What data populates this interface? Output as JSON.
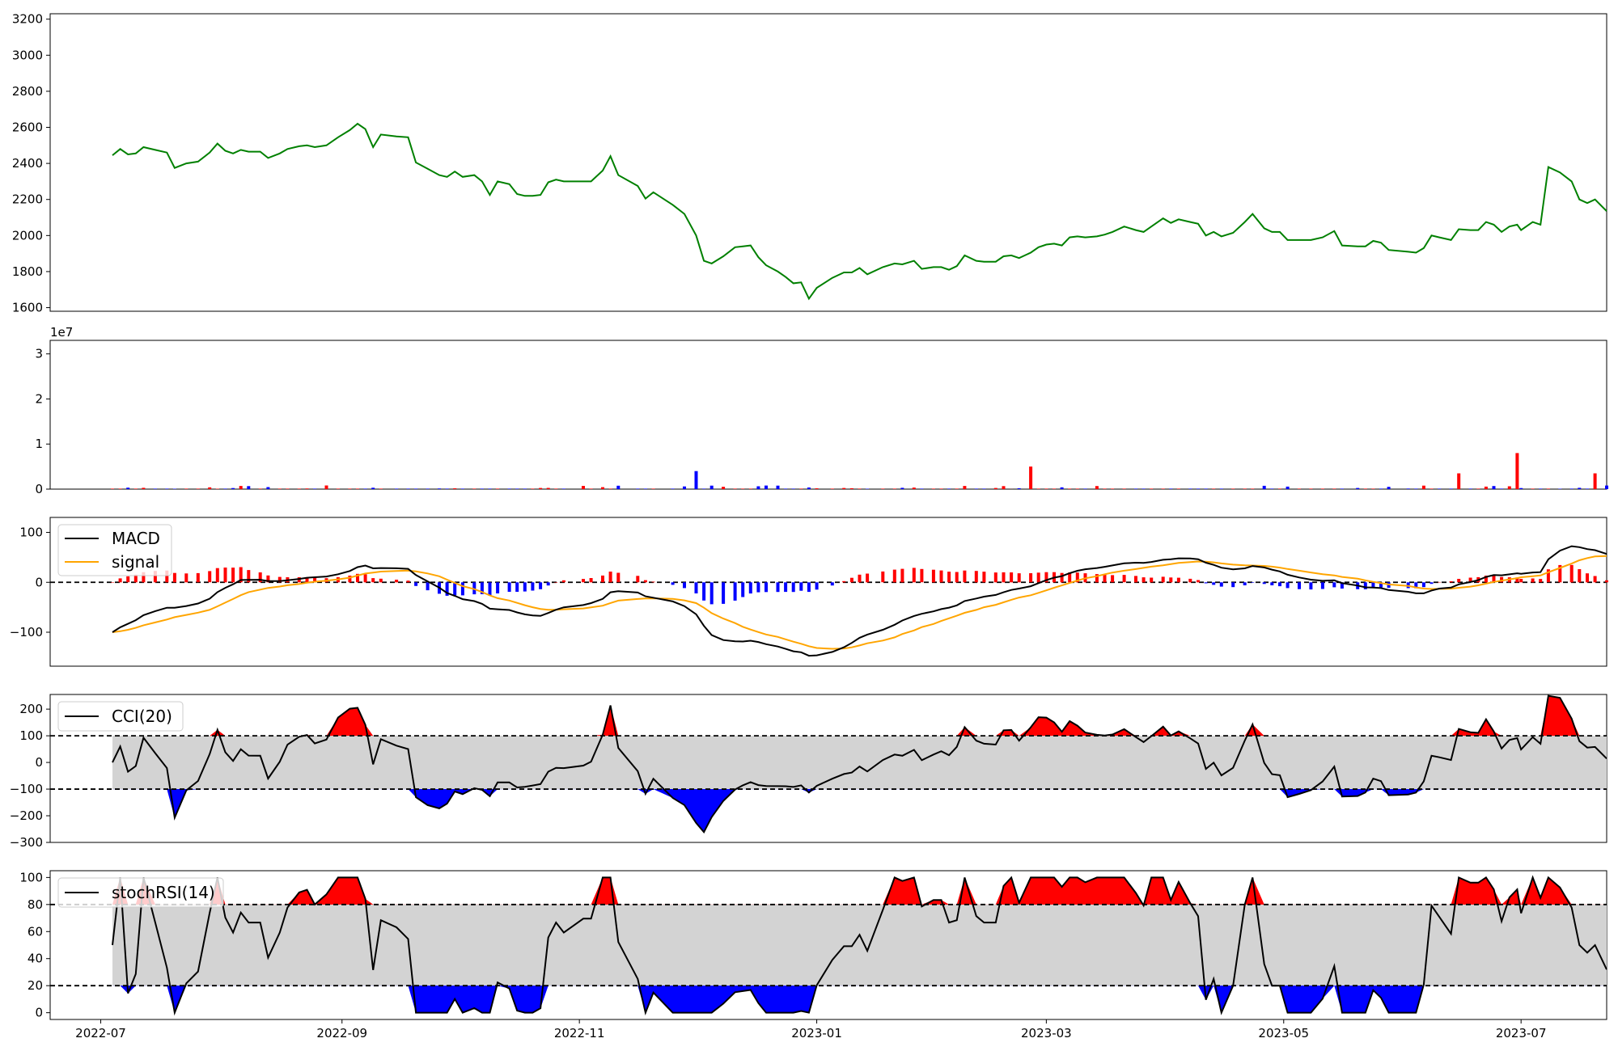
{
  "chart_data": {
    "type": "line",
    "x_axis": {
      "range": [
        "2022-06-18",
        "2023-07-23"
      ],
      "ticks": [
        "2022-07-01",
        "2022-09-01",
        "2022-11-01",
        "2023-01-01",
        "2023-03-01",
        "2023-05-01",
        "2023-07-01"
      ],
      "tick_labels": [
        "2022-07",
        "2022-09",
        "2022-11",
        "2023-01",
        "2023-03",
        "2023-05",
        "2023-07"
      ]
    },
    "colors": {
      "price": "#008000",
      "up": "#ff0000",
      "down": "#0000ff",
      "macd": "#000000",
      "signal": "#ffa500",
      "band": "#d3d3d3"
    },
    "panels": [
      {
        "id": "price",
        "type": "line",
        "ylim": [
          1580,
          3230
        ],
        "yticks": [
          1600,
          1800,
          2000,
          2200,
          2400,
          2600,
          2800,
          3000,
          3200
        ],
        "series": [
          {
            "points": [
              [
                "2022-07-04",
                2445
              ],
              [
                "2022-07-06",
                2480
              ],
              [
                "2022-07-08",
                2450
              ],
              [
                "2022-07-10",
                2455
              ],
              [
                "2022-07-12",
                2490
              ],
              [
                "2022-07-15",
                2475
              ],
              [
                "2022-07-18",
                2460
              ],
              [
                "2022-07-20",
                2375
              ],
              [
                "2022-07-23",
                2400
              ],
              [
                "2022-07-26",
                2410
              ],
              [
                "2022-07-29",
                2460
              ],
              [
                "2022-07-31",
                2510
              ],
              [
                "2022-08-02",
                2470
              ],
              [
                "2022-08-04",
                2455
              ],
              [
                "2022-08-06",
                2475
              ],
              [
                "2022-08-08",
                2465
              ],
              [
                "2022-08-11",
                2465
              ],
              [
                "2022-08-13",
                2430
              ],
              [
                "2022-08-16",
                2455
              ],
              [
                "2022-08-18",
                2480
              ],
              [
                "2022-08-21",
                2495
              ],
              [
                "2022-08-23",
                2500
              ],
              [
                "2022-08-25",
                2490
              ],
              [
                "2022-08-28",
                2500
              ],
              [
                "2022-08-31",
                2545
              ],
              [
                "2022-09-03",
                2585
              ],
              [
                "2022-09-05",
                2620
              ],
              [
                "2022-09-07",
                2590
              ],
              [
                "2022-09-09",
                2490
              ],
              [
                "2022-09-11",
                2560
              ],
              [
                "2022-09-15",
                2550
              ],
              [
                "2022-09-18",
                2545
              ],
              [
                "2022-09-20",
                2405
              ],
              [
                "2022-09-23",
                2370
              ],
              [
                "2022-09-26",
                2335
              ],
              [
                "2022-09-28",
                2325
              ],
              [
                "2022-09-30",
                2355
              ],
              [
                "2022-10-02",
                2325
              ],
              [
                "2022-10-05",
                2335
              ],
              [
                "2022-10-07",
                2300
              ],
              [
                "2022-10-09",
                2225
              ],
              [
                "2022-10-11",
                2300
              ],
              [
                "2022-10-14",
                2285
              ],
              [
                "2022-10-16",
                2230
              ],
              [
                "2022-10-18",
                2220
              ],
              [
                "2022-10-20",
                2220
              ],
              [
                "2022-10-22",
                2225
              ],
              [
                "2022-10-24",
                2295
              ],
              [
                "2022-10-26",
                2310
              ],
              [
                "2022-10-28",
                2300
              ],
              [
                "2022-11-02",
                2300
              ],
              [
                "2022-11-04",
                2300
              ],
              [
                "2022-11-07",
                2360
              ],
              [
                "2022-11-09",
                2440
              ],
              [
                "2022-11-11",
                2335
              ],
              [
                "2022-11-16",
                2275
              ],
              [
                "2022-11-18",
                2205
              ],
              [
                "2022-11-20",
                2240
              ],
              [
                "2022-11-25",
                2170
              ],
              [
                "2022-11-28",
                2120
              ],
              [
                "2022-12-01",
                2000
              ],
              [
                "2022-12-03",
                1860
              ],
              [
                "2022-12-05",
                1845
              ],
              [
                "2022-12-08",
                1885
              ],
              [
                "2022-12-11",
                1935
              ],
              [
                "2022-12-13",
                1940
              ],
              [
                "2022-12-15",
                1945
              ],
              [
                "2022-12-17",
                1880
              ],
              [
                "2022-12-19",
                1835
              ],
              [
                "2022-12-22",
                1800
              ],
              [
                "2022-12-24",
                1770
              ],
              [
                "2022-12-26",
                1735
              ],
              [
                "2022-12-28",
                1740
              ],
              [
                "2022-12-30",
                1650
              ],
              [
                "2023-01-01",
                1710
              ],
              [
                "2023-01-05",
                1765
              ],
              [
                "2023-01-08",
                1795
              ],
              [
                "2023-01-10",
                1795
              ],
              [
                "2023-01-12",
                1820
              ],
              [
                "2023-01-14",
                1785
              ],
              [
                "2023-01-18",
                1825
              ],
              [
                "2023-01-21",
                1845
              ],
              [
                "2023-01-23",
                1840
              ],
              [
                "2023-01-26",
                1860
              ],
              [
                "2023-01-28",
                1815
              ],
              [
                "2023-01-31",
                1825
              ],
              [
                "2023-02-02",
                1825
              ],
              [
                "2023-02-04",
                1810
              ],
              [
                "2023-02-06",
                1830
              ],
              [
                "2023-02-08",
                1890
              ],
              [
                "2023-02-11",
                1860
              ],
              [
                "2023-02-13",
                1855
              ],
              [
                "2023-02-16",
                1855
              ],
              [
                "2023-02-18",
                1885
              ],
              [
                "2023-02-20",
                1890
              ],
              [
                "2023-02-22",
                1875
              ],
              [
                "2023-02-25",
                1905
              ],
              [
                "2023-02-27",
                1935
              ],
              [
                "2023-03-01",
                1950
              ],
              [
                "2023-03-03",
                1955
              ],
              [
                "2023-03-05",
                1945
              ],
              [
                "2023-03-07",
                1990
              ],
              [
                "2023-03-09",
                1995
              ],
              [
                "2023-03-11",
                1990
              ],
              [
                "2023-03-14",
                1995
              ],
              [
                "2023-03-16",
                2005
              ],
              [
                "2023-03-18",
                2020
              ],
              [
                "2023-03-21",
                2050
              ],
              [
                "2023-03-24",
                2030
              ],
              [
                "2023-03-26",
                2020
              ],
              [
                "2023-03-28",
                2050
              ],
              [
                "2023-03-31",
                2095
              ],
              [
                "2023-04-02",
                2070
              ],
              [
                "2023-04-04",
                2090
              ],
              [
                "2023-04-07",
                2075
              ],
              [
                "2023-04-09",
                2065
              ],
              [
                "2023-04-11",
                2000
              ],
              [
                "2023-04-13",
                2020
              ],
              [
                "2023-04-15",
                1995
              ],
              [
                "2023-04-18",
                2015
              ],
              [
                "2023-04-21",
                2075
              ],
              [
                "2023-04-23",
                2120
              ],
              [
                "2023-04-26",
                2040
              ],
              [
                "2023-04-28",
                2020
              ],
              [
                "2023-04-30",
                2020
              ],
              [
                "2023-05-02",
                1975
              ],
              [
                "2023-05-05",
                1975
              ],
              [
                "2023-05-08",
                1975
              ],
              [
                "2023-05-11",
                1990
              ],
              [
                "2023-05-14",
                2025
              ],
              [
                "2023-05-16",
                1945
              ],
              [
                "2023-05-20",
                1940
              ],
              [
                "2023-05-22",
                1940
              ],
              [
                "2023-05-24",
                1970
              ],
              [
                "2023-05-26",
                1960
              ],
              [
                "2023-05-28",
                1920
              ],
              [
                "2023-06-02",
                1910
              ],
              [
                "2023-06-04",
                1905
              ],
              [
                "2023-06-06",
                1930
              ],
              [
                "2023-06-08",
                2000
              ],
              [
                "2023-06-10",
                1990
              ],
              [
                "2023-06-13",
                1975
              ],
              [
                "2023-06-15",
                2035
              ],
              [
                "2023-06-18",
                2030
              ],
              [
                "2023-06-20",
                2030
              ],
              [
                "2023-06-22",
                2075
              ],
              [
                "2023-06-24",
                2060
              ],
              [
                "2023-06-26",
                2020
              ],
              [
                "2023-06-28",
                2050
              ],
              [
                "2023-06-30",
                2060
              ],
              [
                "2023-07-01",
                2030
              ],
              [
                "2023-07-04",
                2075
              ],
              [
                "2023-07-06",
                2060
              ],
              [
                "2023-07-08",
                2380
              ],
              [
                "2023-07-11",
                2350
              ],
              [
                "2023-07-14",
                2300
              ],
              [
                "2023-07-16",
                2200
              ],
              [
                "2023-07-18",
                2180
              ],
              [
                "2023-07-20",
                2200
              ],
              [
                "2023-07-23",
                2135
              ]
            ]
          }
        ]
      },
      {
        "id": "volume",
        "type": "bar",
        "multiplier_label": "1e7",
        "ylim": [
          0,
          3.3
        ],
        "yticks": [
          0,
          1,
          2,
          3
        ]
      },
      {
        "id": "macd",
        "type": "line",
        "legend_position": "upper-left",
        "ylim": [
          -168,
          130
        ],
        "yticks": [
          -100,
          0,
          100
        ],
        "series": [
          {
            "name": "MACD",
            "color": "#000000"
          },
          {
            "name": "signal",
            "color": "#ffa500"
          }
        ]
      },
      {
        "id": "cci",
        "type": "line",
        "legend_position": "upper-left",
        "ylim": [
          -300,
          255
        ],
        "yticks": [
          -300,
          -200,
          -100,
          0,
          100,
          200
        ],
        "thresholds": [
          -100,
          100
        ],
        "series": [
          {
            "name": "CCI(20)",
            "color": "#000000"
          }
        ]
      },
      {
        "id": "stochrsi",
        "type": "line",
        "legend_position": "upper-left",
        "ylim": [
          -5,
          105
        ],
        "yticks": [
          0,
          20,
          40,
          60,
          80,
          100
        ],
        "thresholds": [
          20,
          80
        ],
        "series": [
          {
            "name": "stochRSI(14)",
            "color": "#000000"
          }
        ]
      }
    ]
  }
}
